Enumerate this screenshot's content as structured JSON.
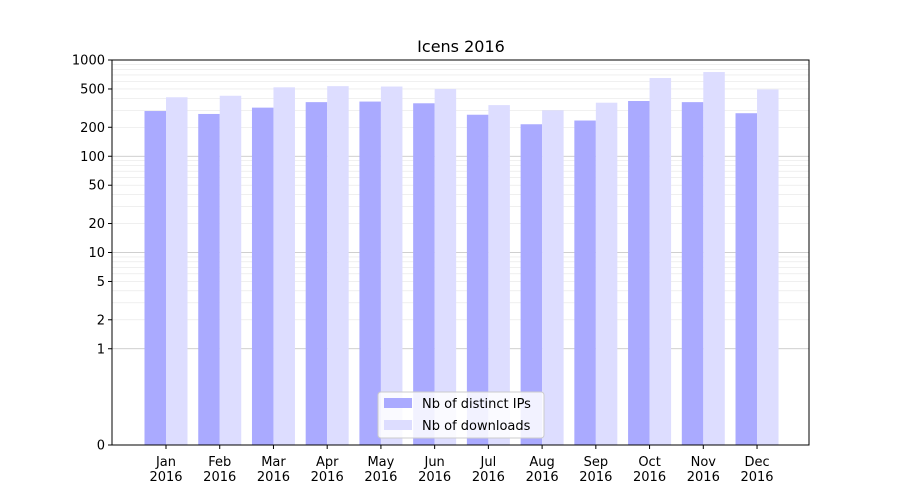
{
  "chart_data": {
    "type": "bar",
    "title": "Icens 2016",
    "xlabel": "",
    "ylabel": "",
    "y_scale": "symlog",
    "ylim": [
      0,
      1000
    ],
    "y_ticks": [
      0,
      1,
      2,
      5,
      10,
      20,
      50,
      100,
      200,
      500,
      1000
    ],
    "y_tick_labels": [
      "0",
      "1",
      "2",
      "5",
      "10",
      "20",
      "50",
      "100",
      "200",
      "500",
      "1000"
    ],
    "grid": true,
    "legend_position": "bottom-center",
    "categories": [
      "Jan\n2016",
      "Feb\n2016",
      "Mar\n2016",
      "Apr\n2016",
      "May\n2016",
      "Jun\n2016",
      "Jul\n2016",
      "Aug\n2016",
      "Sep\n2016",
      "Oct\n2016",
      "Nov\n2016",
      "Dec\n2016"
    ],
    "category_lines": [
      [
        "Jan",
        "2016"
      ],
      [
        "Feb",
        "2016"
      ],
      [
        "Mar",
        "2016"
      ],
      [
        "Apr",
        "2016"
      ],
      [
        "May",
        "2016"
      ],
      [
        "Jun",
        "2016"
      ],
      [
        "Jul",
        "2016"
      ],
      [
        "Aug",
        "2016"
      ],
      [
        "Sep",
        "2016"
      ],
      [
        "Oct",
        "2016"
      ],
      [
        "Nov",
        "2016"
      ],
      [
        "Dec",
        "2016"
      ]
    ],
    "series": [
      {
        "name": "Nb of distinct IPs",
        "color": "#aaaaff",
        "values": [
          295,
          275,
          320,
          365,
          370,
          355,
          270,
          215,
          235,
          375,
          365,
          280
        ]
      },
      {
        "name": "Nb of downloads",
        "color": "#ddddff",
        "values": [
          410,
          425,
          520,
          535,
          530,
          500,
          340,
          300,
          360,
          650,
          750,
          495
        ]
      }
    ]
  }
}
